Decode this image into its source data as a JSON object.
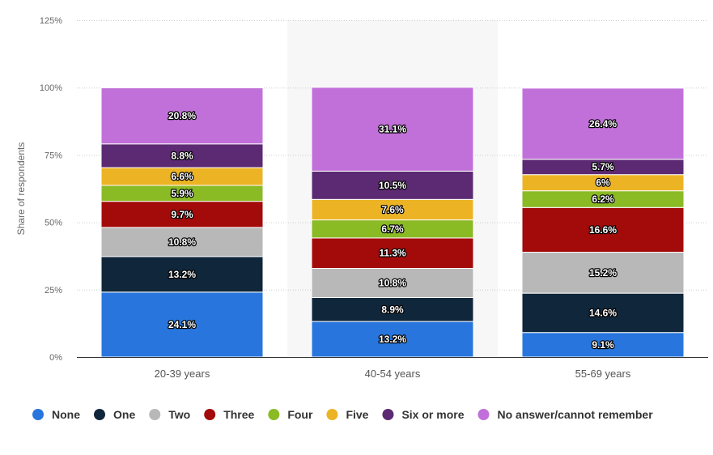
{
  "chart_data": {
    "type": "bar",
    "stacked": true,
    "ylabel": "Share of respondents",
    "ylim": [
      0,
      125
    ],
    "yticks": [
      "0%",
      "25%",
      "50%",
      "75%",
      "100%",
      "125%"
    ],
    "ytick_values": [
      0,
      25,
      50,
      75,
      100,
      125
    ],
    "grid": true,
    "legend_position": "bottom",
    "categories": [
      "20-39 years",
      "40-54 years",
      "55-69 years"
    ],
    "series": [
      {
        "name": "None",
        "color": "#2876dd",
        "values": [
          24.1,
          13.2,
          9.1
        ],
        "labels": [
          "24.1%",
          "13.2%",
          "9.1%"
        ]
      },
      {
        "name": "One",
        "color": "#10263b",
        "values": [
          13.2,
          8.9,
          14.6
        ],
        "labels": [
          "13.2%",
          "8.9%",
          "14.6%"
        ]
      },
      {
        "name": "Two",
        "color": "#b8b8b8",
        "values": [
          10.8,
          10.8,
          15.2
        ],
        "labels": [
          "10.8%",
          "10.8%",
          "15.2%"
        ]
      },
      {
        "name": "Three",
        "color": "#a30b0b",
        "values": [
          9.7,
          11.3,
          16.6
        ],
        "labels": [
          "9.7%",
          "11.3%",
          "16.6%"
        ]
      },
      {
        "name": "Four",
        "color": "#8aba24",
        "values": [
          5.9,
          6.7,
          6.2
        ],
        "labels": [
          "5.9%",
          "6.7%",
          "6.2%"
        ]
      },
      {
        "name": "Five",
        "color": "#ecb424",
        "values": [
          6.6,
          7.6,
          6
        ],
        "labels": [
          "6.6%",
          "7.6%",
          "6%"
        ]
      },
      {
        "name": "Six or more",
        "color": "#5c2a72",
        "values": [
          8.8,
          10.5,
          5.7
        ],
        "labels": [
          "8.8%",
          "10.5%",
          "5.7%"
        ]
      },
      {
        "name": "No answer/cannot remember",
        "color": "#c170d9",
        "values": [
          20.8,
          31.1,
          26.4
        ],
        "labels": [
          "20.8%",
          "31.1%",
          "26.4%"
        ]
      }
    ]
  }
}
